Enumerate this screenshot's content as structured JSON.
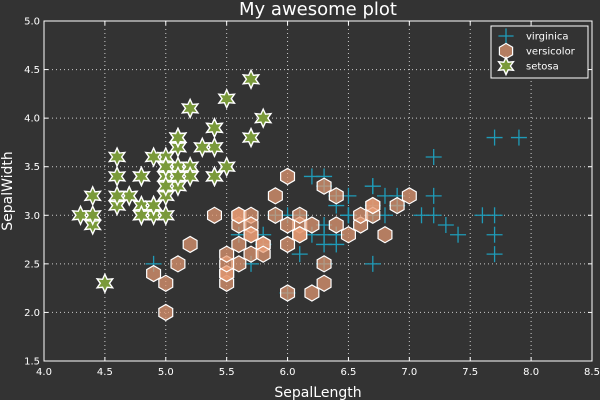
{
  "chart_data": {
    "type": "scatter",
    "title": "My awesome plot",
    "xlabel": "SepalLength",
    "ylabel": "SepalWidth",
    "xlim": [
      4.0,
      8.5
    ],
    "ylim": [
      1.5,
      5.0
    ],
    "xticks": [
      4.0,
      4.5,
      5.0,
      5.5,
      6.0,
      6.5,
      7.0,
      7.5,
      8.0,
      8.5
    ],
    "yticks": [
      1.5,
      2.0,
      2.5,
      3.0,
      3.5,
      4.0,
      4.5,
      5.0
    ],
    "xtick_labels": [
      "4.0",
      "4.5",
      "5.0",
      "5.5",
      "6.0",
      "6.5",
      "7.0",
      "7.5",
      "8.0",
      "8.5"
    ],
    "ytick_labels": [
      "1.5",
      "2.0",
      "2.5",
      "3.0",
      "3.5",
      "4.0",
      "4.5",
      "5.0"
    ],
    "grid": true,
    "legend_position": "top-right",
    "background": "#333333",
    "series": [
      {
        "name": "virginica",
        "marker": "cross",
        "color": "#1f9bb8",
        "x": [
          6.3,
          5.8,
          7.1,
          6.3,
          6.5,
          7.6,
          4.9,
          7.3,
          6.7,
          7.2,
          6.5,
          6.4,
          6.8,
          5.7,
          5.8,
          6.4,
          6.5,
          7.7,
          7.7,
          6.0,
          6.9,
          5.6,
          7.7,
          6.3,
          6.7,
          7.2,
          6.2,
          6.1,
          6.4,
          7.2,
          7.4,
          7.9,
          6.4,
          6.3,
          6.1,
          7.7,
          6.3,
          6.4,
          6.0,
          6.9,
          6.7,
          6.9,
          5.8,
          6.8,
          6.7,
          6.7,
          6.3,
          6.5,
          6.2,
          5.9
        ],
        "y": [
          3.3,
          2.7,
          3.0,
          2.9,
          3.0,
          3.0,
          2.5,
          2.9,
          2.5,
          3.6,
          3.2,
          2.7,
          3.0,
          2.5,
          2.8,
          3.2,
          3.0,
          3.8,
          2.6,
          2.2,
          3.2,
          2.8,
          2.8,
          2.7,
          3.3,
          3.2,
          2.8,
          3.0,
          2.8,
          3.0,
          2.8,
          3.8,
          2.8,
          2.8,
          2.6,
          3.0,
          3.4,
          3.1,
          3.0,
          3.1,
          3.1,
          3.1,
          2.7,
          3.2,
          3.3,
          3.0,
          2.5,
          3.0,
          3.4,
          3.0
        ]
      },
      {
        "name": "versicolor",
        "marker": "hexagon",
        "color": "#e69a73",
        "x": [
          7.0,
          6.4,
          6.9,
          5.5,
          6.5,
          5.7,
          6.3,
          4.9,
          6.6,
          5.2,
          5.0,
          5.9,
          6.0,
          6.1,
          5.6,
          6.7,
          5.6,
          5.8,
          6.2,
          5.6,
          5.9,
          6.1,
          6.3,
          6.1,
          6.4,
          6.6,
          6.8,
          6.7,
          6.0,
          5.7,
          5.5,
          5.5,
          5.8,
          6.0,
          5.4,
          6.0,
          6.7,
          6.3,
          5.6,
          5.5,
          5.5,
          6.1,
          5.8,
          5.0,
          5.6,
          5.7,
          5.7,
          6.2,
          5.1,
          5.7
        ],
        "y": [
          3.2,
          3.2,
          3.1,
          2.3,
          2.8,
          2.8,
          3.3,
          2.4,
          2.9,
          2.7,
          2.0,
          3.0,
          2.2,
          2.9,
          2.9,
          3.1,
          3.0,
          2.7,
          2.2,
          2.5,
          3.2,
          2.8,
          2.5,
          2.8,
          2.9,
          3.0,
          2.8,
          3.0,
          2.9,
          2.6,
          2.4,
          2.4,
          2.7,
          2.7,
          3.0,
          3.4,
          3.1,
          2.3,
          3.0,
          2.5,
          2.6,
          3.0,
          2.6,
          2.3,
          2.7,
          3.0,
          2.9,
          2.9,
          2.5,
          2.8
        ]
      },
      {
        "name": "setosa",
        "marker": "star",
        "color": "#7a9a3a",
        "x": [
          5.1,
          4.9,
          4.7,
          4.6,
          5.0,
          5.4,
          4.6,
          5.0,
          4.4,
          4.9,
          5.4,
          4.8,
          4.8,
          4.3,
          5.8,
          5.7,
          5.4,
          5.1,
          5.7,
          5.1,
          5.4,
          5.1,
          4.6,
          5.1,
          4.8,
          5.0,
          5.0,
          5.2,
          5.2,
          4.7,
          4.8,
          5.4,
          5.2,
          5.5,
          4.9,
          5.0,
          5.5,
          4.9,
          4.4,
          5.1,
          5.0,
          4.5,
          4.4,
          5.0,
          5.1,
          4.8,
          5.1,
          4.6,
          5.3,
          5.0
        ],
        "y": [
          3.5,
          3.0,
          3.2,
          3.1,
          3.6,
          3.9,
          3.4,
          3.4,
          2.9,
          3.1,
          3.7,
          3.4,
          3.0,
          3.0,
          4.0,
          4.4,
          3.9,
          3.5,
          3.8,
          3.8,
          3.4,
          3.7,
          3.6,
          3.3,
          3.4,
          3.0,
          3.4,
          3.5,
          3.4,
          3.2,
          3.1,
          3.4,
          4.1,
          4.2,
          3.1,
          3.2,
          3.5,
          3.6,
          3.0,
          3.4,
          3.5,
          2.3,
          3.2,
          3.5,
          3.8,
          3.0,
          3.8,
          3.2,
          3.7,
          3.3
        ]
      }
    ]
  }
}
